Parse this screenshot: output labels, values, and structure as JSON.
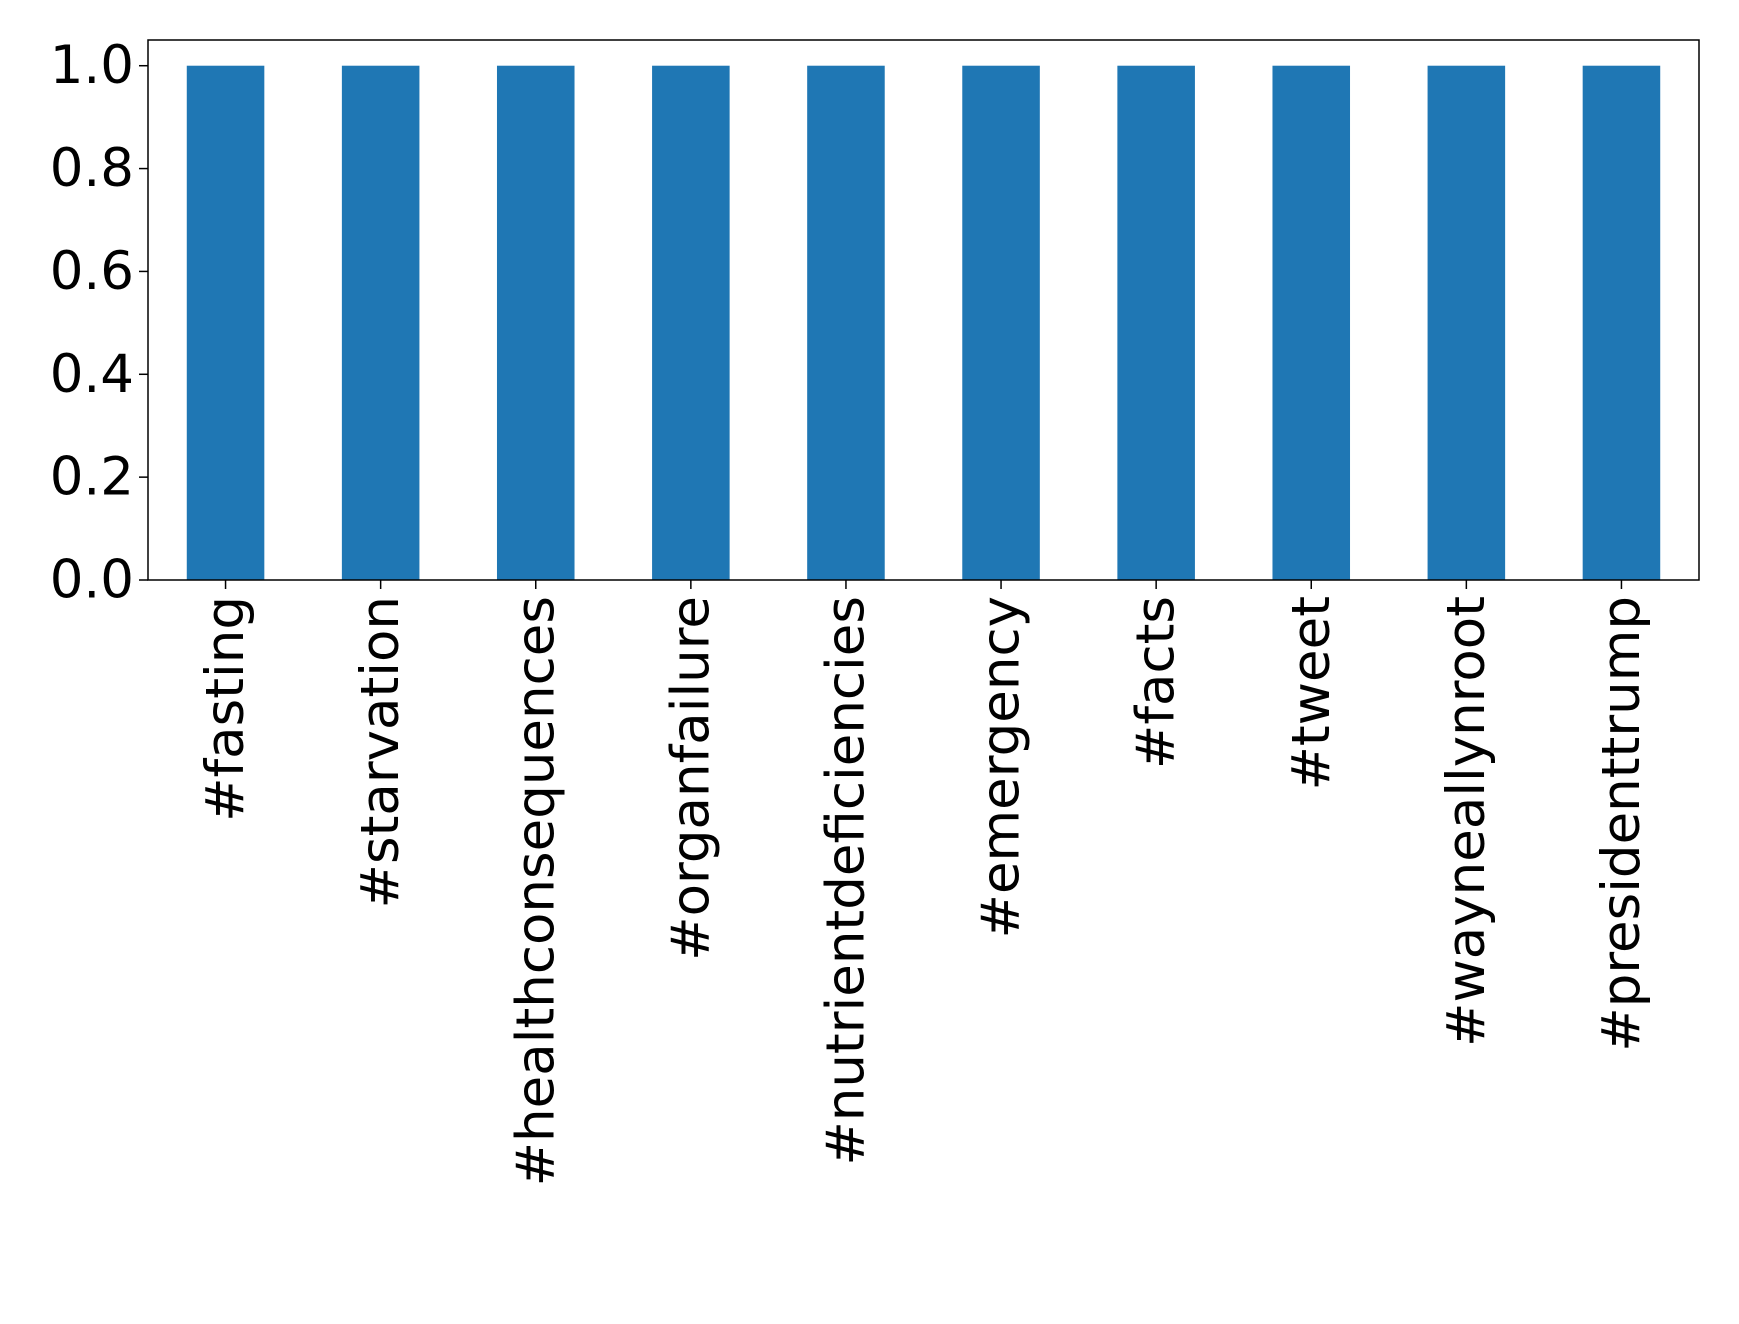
{
  "chart_data": {
    "type": "bar",
    "categories": [
      "#fasting",
      "#starvation",
      "#healthconsequences",
      "#organfailure",
      "#nutrientdeficiencies",
      "#emergency",
      "#facts",
      "#tweet",
      "#wayneallynroot",
      "#presidenttrump"
    ],
    "values": [
      1,
      1,
      1,
      1,
      1,
      1,
      1,
      1,
      1,
      1
    ],
    "color": "#1f77b4",
    "ylim": [
      0,
      1.05
    ],
    "yticks": [
      {
        "value": 0,
        "label": "0.0"
      },
      0.2,
      0.4,
      0.6,
      0.8,
      {
        "value": 1,
        "label": "1.0"
      }
    ],
    "grid": false
  }
}
